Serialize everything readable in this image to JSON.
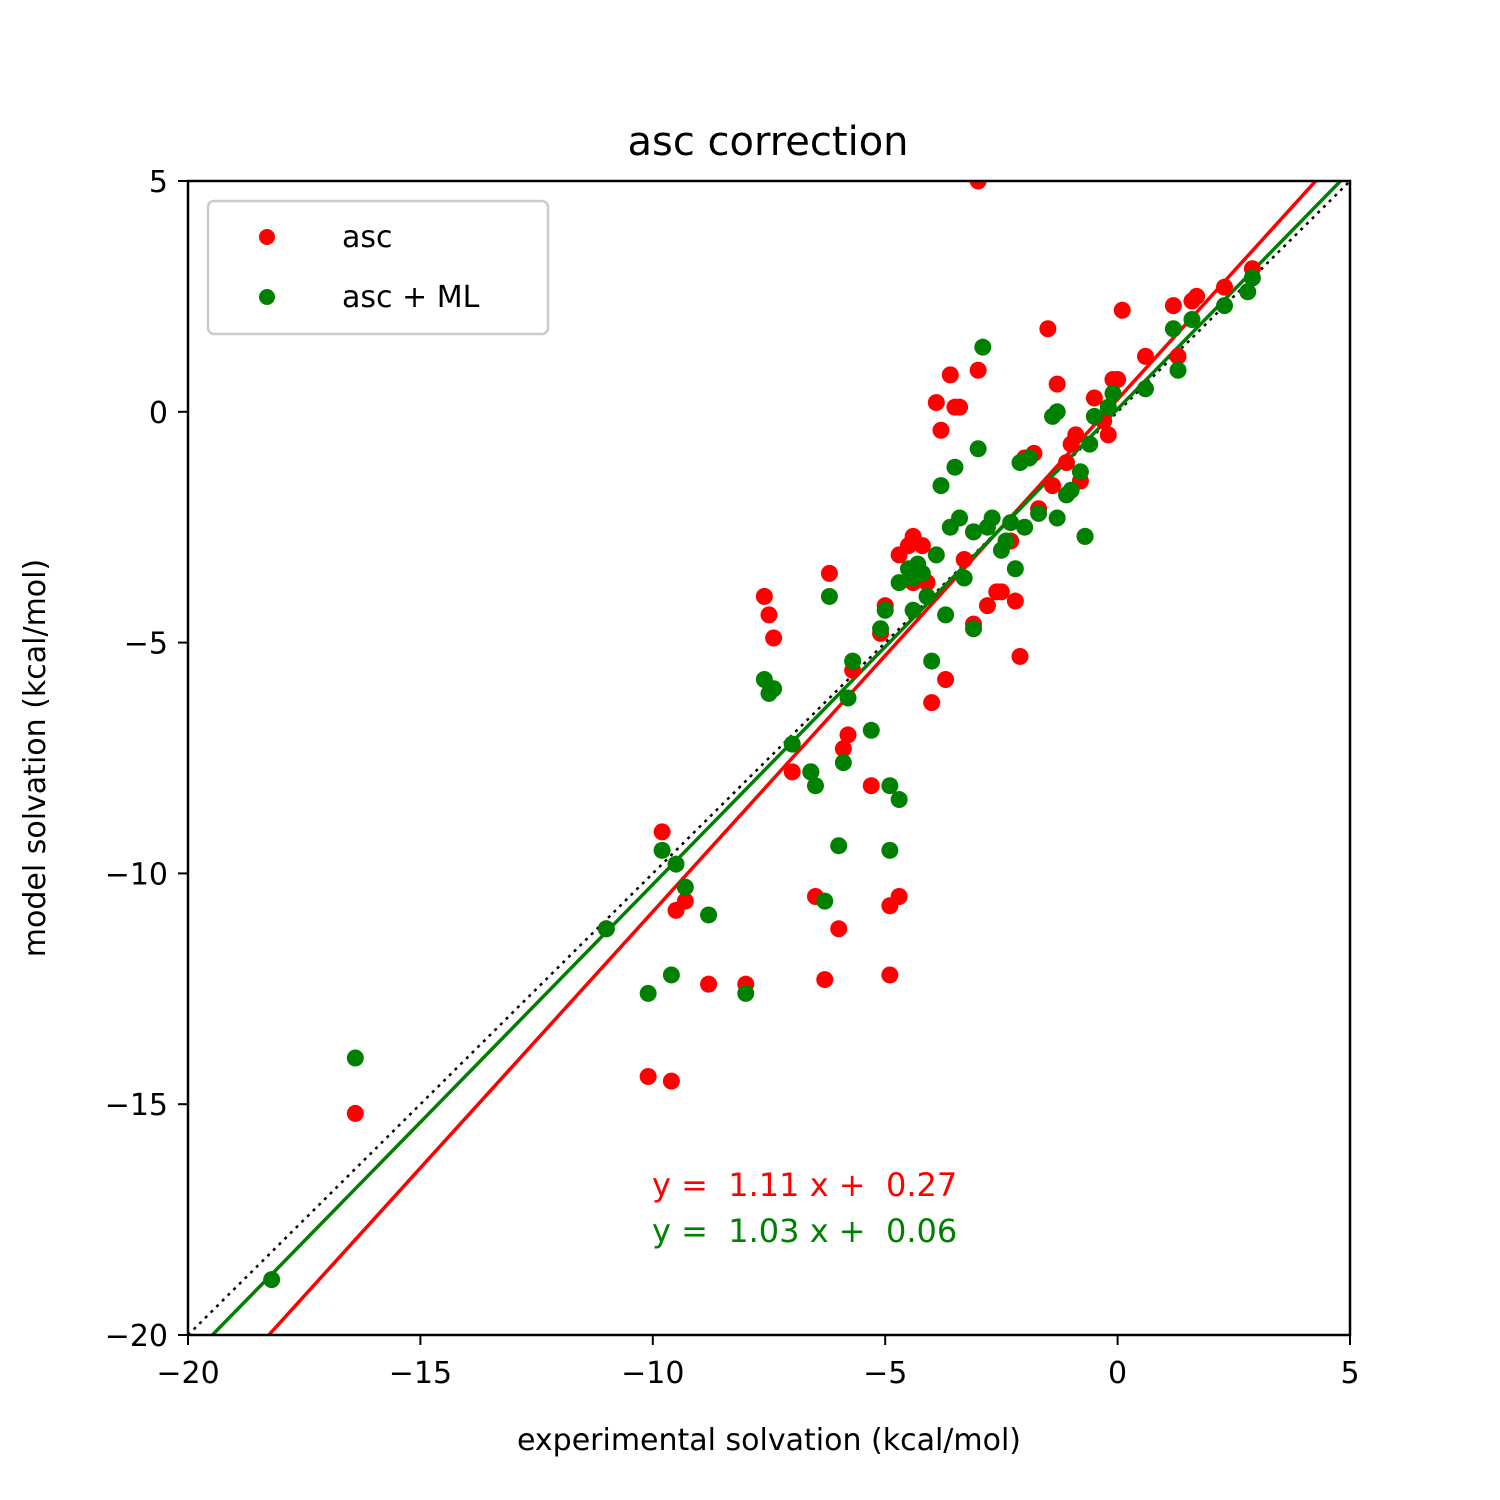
{
  "chart_data": {
    "type": "scatter",
    "title": "asc correction",
    "xlabel": "experimental solvation (kcal/mol)",
    "ylabel": "model solvation (kcal/mol)",
    "xlim": [
      -20,
      5
    ],
    "ylim": [
      -20,
      5
    ],
    "xticks": [
      -20,
      -15,
      -10,
      -5,
      0,
      5
    ],
    "yticks": [
      -20,
      -15,
      -10,
      -5,
      0,
      5
    ],
    "xtick_labels": [
      "−20",
      "−15",
      "−10",
      "−5",
      "0",
      "5"
    ],
    "ytick_labels": [
      "−20",
      "−15",
      "−10",
      "−5",
      "0",
      "5"
    ],
    "grid": false,
    "legend_position": "top-left",
    "identity_line": true,
    "series": [
      {
        "name": "asc",
        "color": "#ff0000",
        "fit": {
          "slope": 1.11,
          "intercept": 0.27,
          "label": "y =  1.11 x +  0.27"
        },
        "points": [
          [
            -16.4,
            -15.2
          ],
          [
            -11.0,
            -11.2
          ],
          [
            -10.1,
            -14.4
          ],
          [
            -9.6,
            -14.5
          ],
          [
            -9.8,
            -9.1
          ],
          [
            -9.5,
            -10.8
          ],
          [
            -9.3,
            -10.6
          ],
          [
            -8.8,
            -12.4
          ],
          [
            -8.0,
            -12.4
          ],
          [
            -7.6,
            -4.0
          ],
          [
            -7.5,
            -4.4
          ],
          [
            -7.4,
            -4.9
          ],
          [
            -7.0,
            -7.8
          ],
          [
            -6.6,
            -7.8
          ],
          [
            -6.5,
            -10.5
          ],
          [
            -6.3,
            -12.3
          ],
          [
            -6.2,
            -3.5
          ],
          [
            -6.0,
            -11.2
          ],
          [
            -5.9,
            -7.3
          ],
          [
            -5.8,
            -7.0
          ],
          [
            -5.7,
            -5.6
          ],
          [
            -5.3,
            -8.1
          ],
          [
            -5.1,
            -4.8
          ],
          [
            -5.0,
            -4.2
          ],
          [
            -4.9,
            -10.7
          ],
          [
            -4.9,
            -12.2
          ],
          [
            -4.7,
            -10.5
          ],
          [
            -4.7,
            -3.1
          ],
          [
            -4.5,
            -2.9
          ],
          [
            -4.4,
            -2.7
          ],
          [
            -4.4,
            -3.7
          ],
          [
            -4.2,
            -2.9
          ],
          [
            -4.1,
            -3.7
          ],
          [
            -4.0,
            -6.3
          ],
          [
            -3.9,
            0.2
          ],
          [
            -3.8,
            -0.4
          ],
          [
            -3.7,
            -5.8
          ],
          [
            -3.6,
            0.8
          ],
          [
            -3.5,
            0.1
          ],
          [
            -3.4,
            0.1
          ],
          [
            -3.3,
            -3.2
          ],
          [
            -3.1,
            -2.6
          ],
          [
            -3.1,
            -4.6
          ],
          [
            -3.0,
            0.9
          ],
          [
            -3.0,
            5.0
          ],
          [
            -2.8,
            -4.2
          ],
          [
            -2.6,
            -3.9
          ],
          [
            -2.5,
            -3.9
          ],
          [
            -2.3,
            -2.8
          ],
          [
            -2.2,
            -4.1
          ],
          [
            -2.1,
            -5.3
          ],
          [
            -2.0,
            -1.0
          ],
          [
            -1.8,
            -0.9
          ],
          [
            -1.7,
            -2.1
          ],
          [
            -1.5,
            1.8
          ],
          [
            -1.4,
            -1.6
          ],
          [
            -1.3,
            0.6
          ],
          [
            -1.1,
            -1.1
          ],
          [
            -1.0,
            -0.7
          ],
          [
            -0.9,
            -0.5
          ],
          [
            -0.8,
            -1.5
          ],
          [
            -0.7,
            -2.7
          ],
          [
            -0.5,
            0.3
          ],
          [
            -0.3,
            -0.2
          ],
          [
            -0.2,
            -0.5
          ],
          [
            -0.1,
            0.7
          ],
          [
            0.0,
            0.7
          ],
          [
            0.1,
            2.2
          ],
          [
            0.6,
            1.2
          ],
          [
            1.2,
            2.3
          ],
          [
            1.3,
            1.2
          ],
          [
            1.6,
            2.4
          ],
          [
            1.7,
            2.5
          ],
          [
            2.3,
            2.7
          ],
          [
            2.9,
            3.1
          ]
        ]
      },
      {
        "name": "asc + ML",
        "color": "#008000",
        "fit": {
          "slope": 1.03,
          "intercept": 0.06,
          "label": "y =  1.03 x +  0.06"
        },
        "points": [
          [
            -18.2,
            -18.8
          ],
          [
            -16.4,
            -14.0
          ],
          [
            -11.0,
            -11.2
          ],
          [
            -10.1,
            -12.6
          ],
          [
            -9.8,
            -9.5
          ],
          [
            -9.6,
            -12.2
          ],
          [
            -9.5,
            -9.8
          ],
          [
            -9.3,
            -10.3
          ],
          [
            -8.8,
            -10.9
          ],
          [
            -8.0,
            -12.6
          ],
          [
            -7.6,
            -5.8
          ],
          [
            -7.5,
            -6.1
          ],
          [
            -7.4,
            -6.0
          ],
          [
            -7.0,
            -7.2
          ],
          [
            -6.6,
            -7.8
          ],
          [
            -6.5,
            -8.1
          ],
          [
            -6.3,
            -10.6
          ],
          [
            -6.2,
            -4.0
          ],
          [
            -6.0,
            -9.4
          ],
          [
            -5.9,
            -7.6
          ],
          [
            -5.8,
            -6.2
          ],
          [
            -5.7,
            -5.4
          ],
          [
            -5.3,
            -6.9
          ],
          [
            -5.1,
            -4.7
          ],
          [
            -5.0,
            -4.3
          ],
          [
            -4.9,
            -8.1
          ],
          [
            -4.9,
            -9.5
          ],
          [
            -4.7,
            -8.4
          ],
          [
            -4.7,
            -3.7
          ],
          [
            -4.5,
            -3.4
          ],
          [
            -4.4,
            -3.6
          ],
          [
            -4.4,
            -4.3
          ],
          [
            -4.3,
            -3.3
          ],
          [
            -4.2,
            -3.5
          ],
          [
            -4.1,
            -4.0
          ],
          [
            -4.0,
            -5.4
          ],
          [
            -3.9,
            -3.1
          ],
          [
            -3.8,
            -1.6
          ],
          [
            -3.7,
            -4.4
          ],
          [
            -3.6,
            -2.5
          ],
          [
            -3.5,
            -1.2
          ],
          [
            -3.4,
            -2.3
          ],
          [
            -3.3,
            -3.6
          ],
          [
            -3.1,
            -2.6
          ],
          [
            -3.1,
            -4.7
          ],
          [
            -3.0,
            -0.8
          ],
          [
            -2.9,
            1.4
          ],
          [
            -2.8,
            -2.5
          ],
          [
            -2.7,
            -2.3
          ],
          [
            -2.5,
            -3.0
          ],
          [
            -2.4,
            -2.8
          ],
          [
            -2.3,
            -2.4
          ],
          [
            -2.2,
            -3.4
          ],
          [
            -2.1,
            -1.1
          ],
          [
            -2.0,
            -2.5
          ],
          [
            -1.9,
            -1.0
          ],
          [
            -1.7,
            -2.2
          ],
          [
            -1.4,
            -0.1
          ],
          [
            -1.3,
            0.0
          ],
          [
            -1.3,
            -2.3
          ],
          [
            -1.1,
            -1.8
          ],
          [
            -1.0,
            -1.7
          ],
          [
            -0.8,
            -1.3
          ],
          [
            -0.7,
            -2.7
          ],
          [
            -0.6,
            -0.7
          ],
          [
            -0.5,
            -0.1
          ],
          [
            -0.2,
            0.1
          ],
          [
            -0.1,
            0.4
          ],
          [
            0.6,
            0.5
          ],
          [
            1.2,
            1.8
          ],
          [
            1.3,
            0.9
          ],
          [
            1.6,
            2.0
          ],
          [
            2.3,
            2.3
          ],
          [
            2.8,
            2.6
          ],
          [
            2.9,
            2.9
          ]
        ]
      }
    ]
  }
}
